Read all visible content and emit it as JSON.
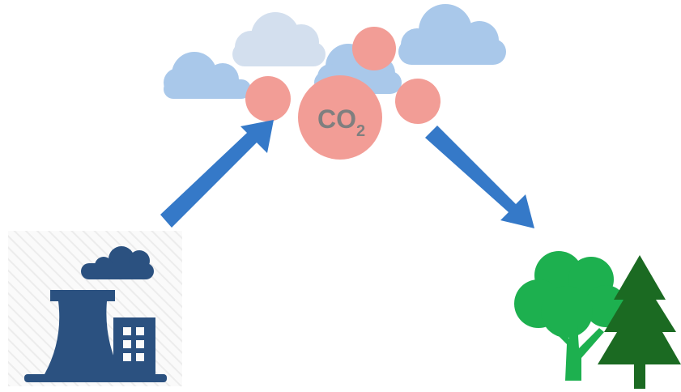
{
  "co2_label": {
    "main": "CO",
    "subscript": "2"
  }
}
